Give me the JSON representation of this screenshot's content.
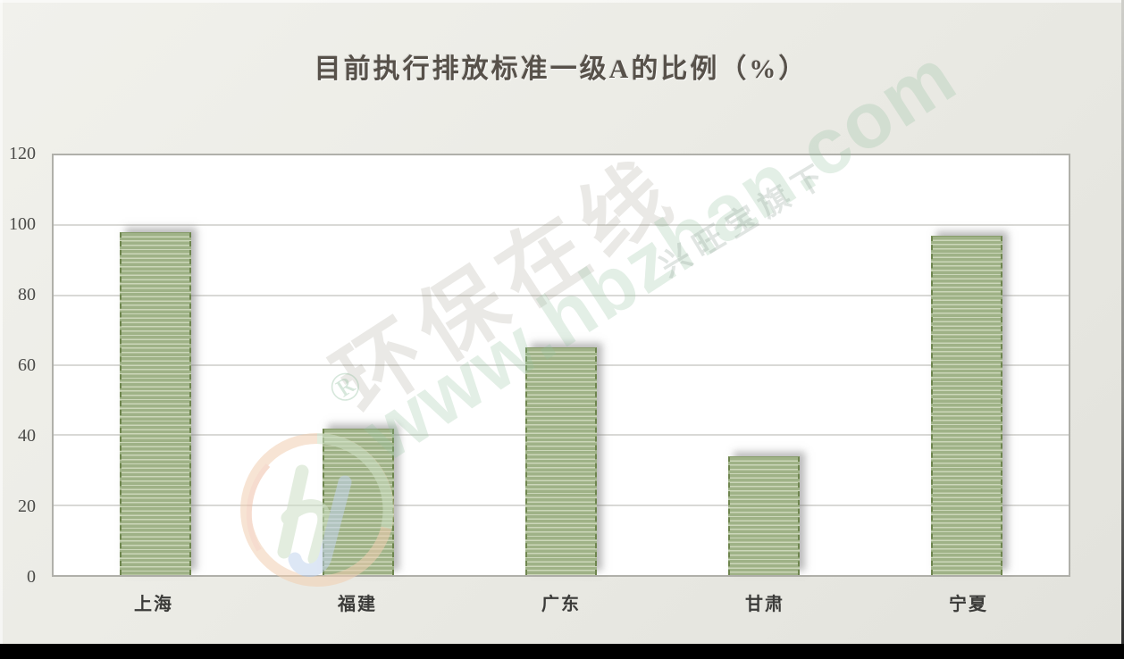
{
  "chart_data": {
    "type": "bar",
    "title": "目前执行排放标准一级A的比例（%）",
    "categories": [
      "上海",
      "福建",
      "广东",
      "甘肃",
      "宁夏"
    ],
    "values": [
      98,
      42,
      65,
      34,
      97
    ],
    "ylim": [
      0,
      120
    ],
    "yticks": [
      0,
      20,
      40,
      60,
      80,
      100,
      120
    ],
    "xlabel": "",
    "ylabel": "",
    "grid": true,
    "legend_position": "none",
    "bar_fill_color": "#9fb287",
    "bar_stripe_color": "#ccd7ba",
    "bar_edge_color": "#6f864f",
    "plot_background": "#ffffff",
    "page_background": "#ebebe5"
  },
  "watermark": {
    "brand_text": "环保在线",
    "registered_mark": "®",
    "url_text": "www.hbzhan.com",
    "subsidiary_text": "兴旺宝旗下",
    "logo_icon": "hb-circle-logo",
    "logo_ring_orange": "#f2cfb1",
    "logo_ring_green": "#cfe1c5",
    "logo_letter_green": "#cde0c6",
    "logo_letter_blue": "#c3d4ee"
  }
}
